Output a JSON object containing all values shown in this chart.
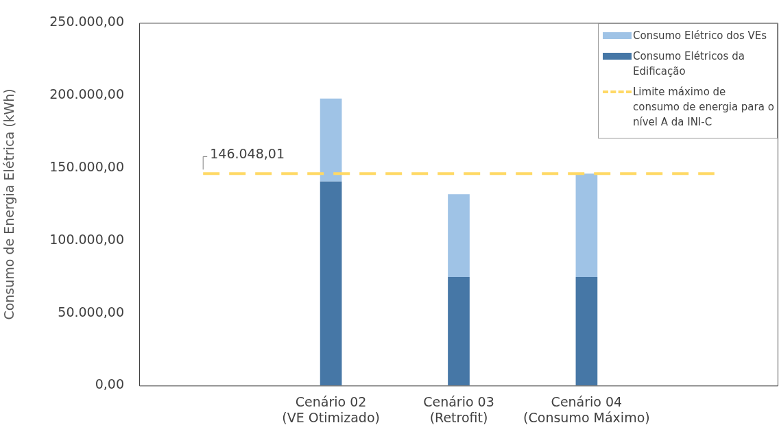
{
  "chart_data": {
    "type": "bar",
    "stacked": true,
    "ylabel": "Consumo de Energia Elétrica (kWh)",
    "categories": [
      null,
      "Cenário 02\n(VE Otimizado)",
      "Cenário 03\n(Retrofit)",
      "Cenário 04\n(Consumo Máximo)",
      null
    ],
    "series": [
      {
        "name": "Consumo Elétricos da Edificação",
        "color": "#4677a6",
        "values": [
          null,
          140700,
          74900,
          74900,
          null
        ]
      },
      {
        "name": "Consumo Elétrico dos VEs",
        "color": "#9fc3e6",
        "values": [
          null,
          57100,
          57000,
          71200,
          null
        ]
      },
      {
        "name": "Limite máximo de consumo de energia para o nível A da INI-C",
        "type": "line",
        "color": "#ffd966",
        "line_style": "dashed",
        "marker": "none",
        "values": [
          146048.01,
          146048.01,
          146048.01,
          146048.01,
          146048.01
        ],
        "value_labels": [
          "146.048,01",
          null,
          null,
          null,
          null
        ]
      }
    ],
    "ylim": [
      0,
      250000
    ],
    "yticks": [
      {
        "value": 0,
        "label": "0,00"
      },
      {
        "value": 50000,
        "label": "50.000,00"
      },
      {
        "value": 100000,
        "label": "100.000,00"
      },
      {
        "value": 150000,
        "label": "150.000,00"
      },
      {
        "value": 200000,
        "label": "200.000,00"
      },
      {
        "value": 250000,
        "label": "250.000,00"
      }
    ],
    "grid": false,
    "legend": "top right"
  }
}
